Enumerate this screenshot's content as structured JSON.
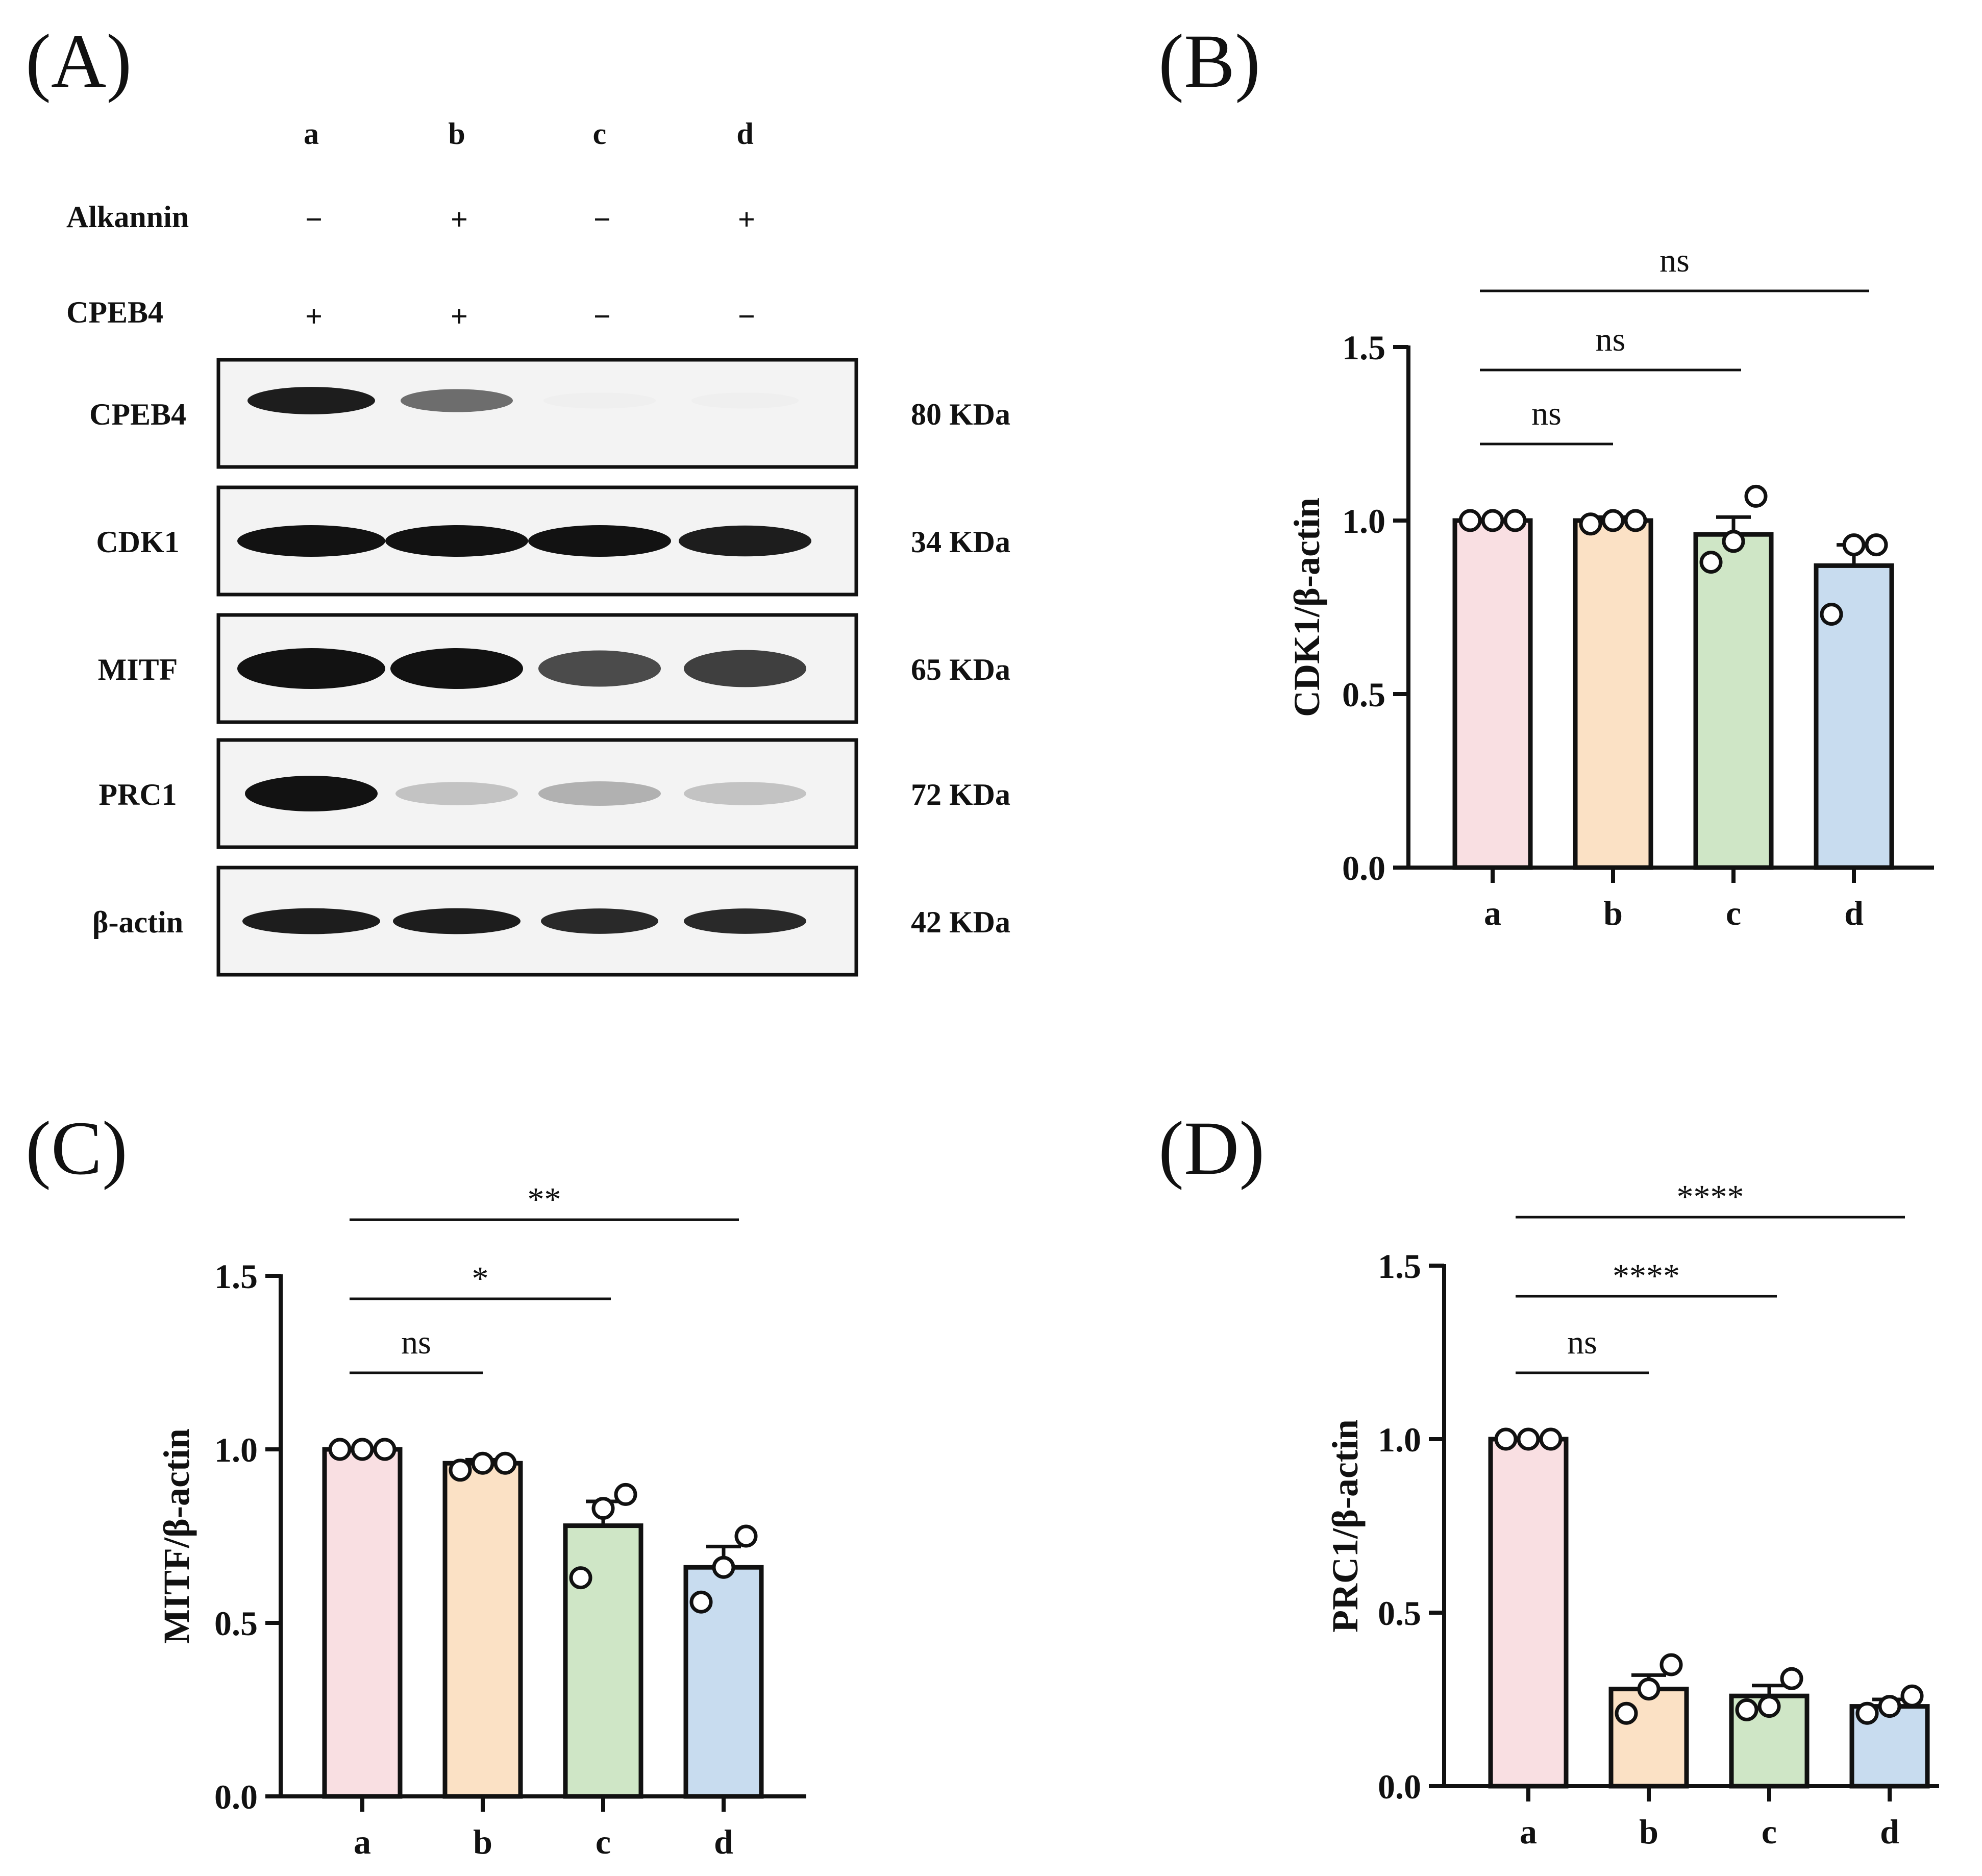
{
  "panel_labels": [
    "(A)",
    "(B)",
    "(C)",
    "(D)"
  ],
  "blot": {
    "lanes": [
      "a",
      "b",
      "c",
      "d"
    ],
    "treatments": [
      {
        "name": "Alkannin",
        "signs": [
          "−",
          "+",
          "−",
          "+"
        ]
      },
      {
        "name": "CPEB4",
        "signs": [
          "+",
          "+",
          "−",
          "−"
        ]
      }
    ],
    "rows": [
      {
        "protein": "CPEB4",
        "size": "80 KDa",
        "band_intensity": [
          0.95,
          0.6,
          0.03,
          0.03
        ]
      },
      {
        "protein": "CDK1",
        "size": "34 KDa",
        "band_intensity": [
          1.0,
          1.0,
          1.0,
          0.95
        ]
      },
      {
        "protein": "MITF",
        "size": "65 KDa",
        "band_intensity": [
          1.0,
          1.0,
          0.75,
          0.8
        ]
      },
      {
        "protein": "PRC1",
        "size": "72 KDa",
        "band_intensity": [
          1.0,
          0.22,
          0.3,
          0.22
        ]
      },
      {
        "protein": "β-actin",
        "size": "42 KDa",
        "band_intensity": [
          0.95,
          0.95,
          0.9,
          0.9
        ]
      }
    ]
  },
  "chart_data": [
    {
      "type": "bar",
      "panel": "(B)",
      "categories": [
        "a",
        "b",
        "c",
        "d"
      ],
      "values": [
        1.0,
        1.0,
        0.96,
        0.87
      ],
      "sem": [
        0.0,
        0.01,
        0.05,
        0.06
      ],
      "points": [
        [
          1.0,
          1.0,
          1.0
        ],
        [
          0.99,
          1.0,
          1.0
        ],
        [
          0.88,
          0.94,
          1.07
        ],
        [
          0.73,
          0.93,
          0.93
        ]
      ],
      "ylabel": "CDK1/β-actin",
      "ylim": [
        0,
        1.5
      ],
      "yticks": [
        "0.0",
        "0.5",
        "1.0",
        "1.5"
      ],
      "colors": [
        "#f9dfe2",
        "#fbe1c5",
        "#cfe6c6",
        "#c8dcef"
      ],
      "comparisons": [
        {
          "from": "a",
          "to": "b",
          "label": "ns"
        },
        {
          "from": "a",
          "to": "c",
          "label": "ns"
        },
        {
          "from": "a",
          "to": "d",
          "label": "ns"
        }
      ]
    },
    {
      "type": "bar",
      "panel": "(C)",
      "categories": [
        "a",
        "b",
        "c",
        "d"
      ],
      "values": [
        1.0,
        0.96,
        0.78,
        0.66
      ],
      "sem": [
        0.0,
        0.01,
        0.07,
        0.06
      ],
      "points": [
        [
          1.0,
          1.0,
          1.0
        ],
        [
          0.94,
          0.96,
          0.96
        ],
        [
          0.63,
          0.83,
          0.87
        ],
        [
          0.56,
          0.66,
          0.75
        ]
      ],
      "ylabel": "MITF/β-actin",
      "ylim": [
        0,
        1.5
      ],
      "yticks": [
        "0.0",
        "0.5",
        "1.0",
        "1.5"
      ],
      "colors": [
        "#f9dfe2",
        "#fbe1c5",
        "#cfe6c6",
        "#c8dcef"
      ],
      "comparisons": [
        {
          "from": "a",
          "to": "b",
          "label": "ns"
        },
        {
          "from": "a",
          "to": "c",
          "label": "*"
        },
        {
          "from": "a",
          "to": "d",
          "label": "**"
        }
      ]
    },
    {
      "type": "bar",
      "panel": "(D)",
      "categories": [
        "a",
        "b",
        "c",
        "d"
      ],
      "values": [
        1.0,
        0.28,
        0.26,
        0.23
      ],
      "sem": [
        0.0,
        0.04,
        0.03,
        0.02
      ],
      "points": [
        [
          1.0,
          1.0,
          1.0
        ],
        [
          0.21,
          0.28,
          0.35
        ],
        [
          0.22,
          0.23,
          0.31
        ],
        [
          0.21,
          0.23,
          0.26
        ]
      ],
      "ylabel": "PRC1/β-actin",
      "ylim": [
        0,
        1.5
      ],
      "yticks": [
        "0.0",
        "0.5",
        "1.0",
        "1.5"
      ],
      "colors": [
        "#f9dfe2",
        "#fbe1c5",
        "#cfe6c6",
        "#c8dcef"
      ],
      "comparisons": [
        {
          "from": "a",
          "to": "b",
          "label": "ns"
        },
        {
          "from": "a",
          "to": "c",
          "label": "****"
        },
        {
          "from": "a",
          "to": "d",
          "label": "****"
        }
      ]
    }
  ]
}
